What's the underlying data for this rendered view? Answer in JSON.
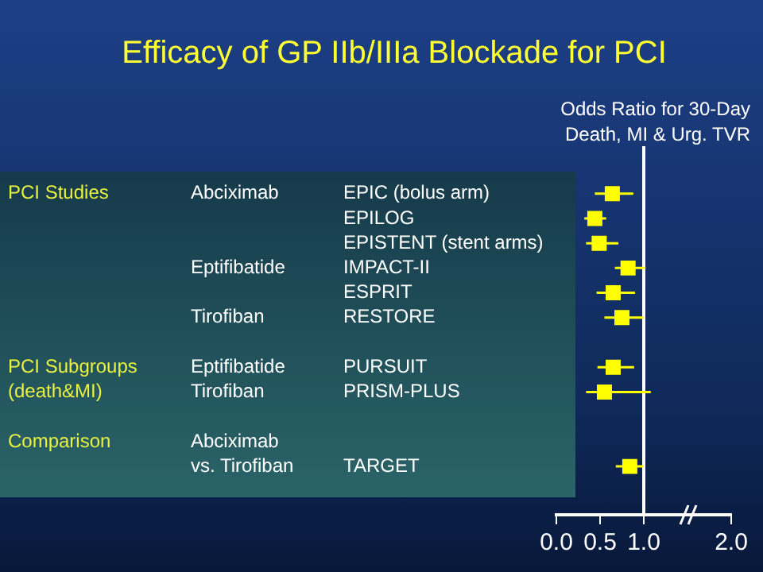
{
  "chart_data": {
    "type": "scatter",
    "title": "Efficacy of GP IIb/IIIa Blockade for PCI",
    "xlabel": "Odds Ratio for 30-Day\nDeath, MI & Urg. TVR",
    "categories": [
      "EPIC (bolus arm)",
      "EPILOG",
      "EPISTENT (stent arms)",
      "IMPACT-II",
      "ESPRIT",
      "RESTORE",
      null,
      "PURSUIT",
      "PRISM-PLUS",
      null,
      null,
      "TARGET"
    ],
    "values": [
      0.64,
      0.44,
      0.49,
      0.82,
      0.65,
      0.75,
      null,
      0.65,
      0.55,
      null,
      null,
      0.84
    ],
    "errors": [
      [
        0.44,
        0.88
      ],
      [
        0.32,
        0.57
      ],
      [
        0.34,
        0.71
      ],
      [
        0.67,
        1.02
      ],
      [
        0.46,
        0.9
      ],
      [
        0.55,
        1.0
      ],
      null,
      [
        0.47,
        0.89
      ],
      [
        0.34,
        1.08
      ],
      null,
      null,
      [
        0.68,
        1.0
      ]
    ],
    "color": "#ffff00",
    "marker": "square",
    "orientation": "horizontal",
    "xlim": [
      0,
      2
    ],
    "xticks": [
      {
        "value": 0,
        "label": "0.0"
      },
      {
        "value": 0.5,
        "label": "0.5"
      },
      {
        "value": 1,
        "label": "1.0"
      },
      {
        "value": 2,
        "label": "2.0"
      }
    ],
    "ref_lines": [
      {
        "axis": "x",
        "value": 1,
        "color": "#ffffff"
      }
    ],
    "annotations": [
      "PCI Studies",
      "Abciximab",
      "Eptifibatide",
      "Tirofiban",
      "PCI Subgroups",
      "Eptifibatide",
      "(death&MI)",
      "Tirofiban",
      "Comparison",
      "Abciximab",
      "vs. Tirofiban"
    ],
    "grid": false,
    "legend": false
  }
}
